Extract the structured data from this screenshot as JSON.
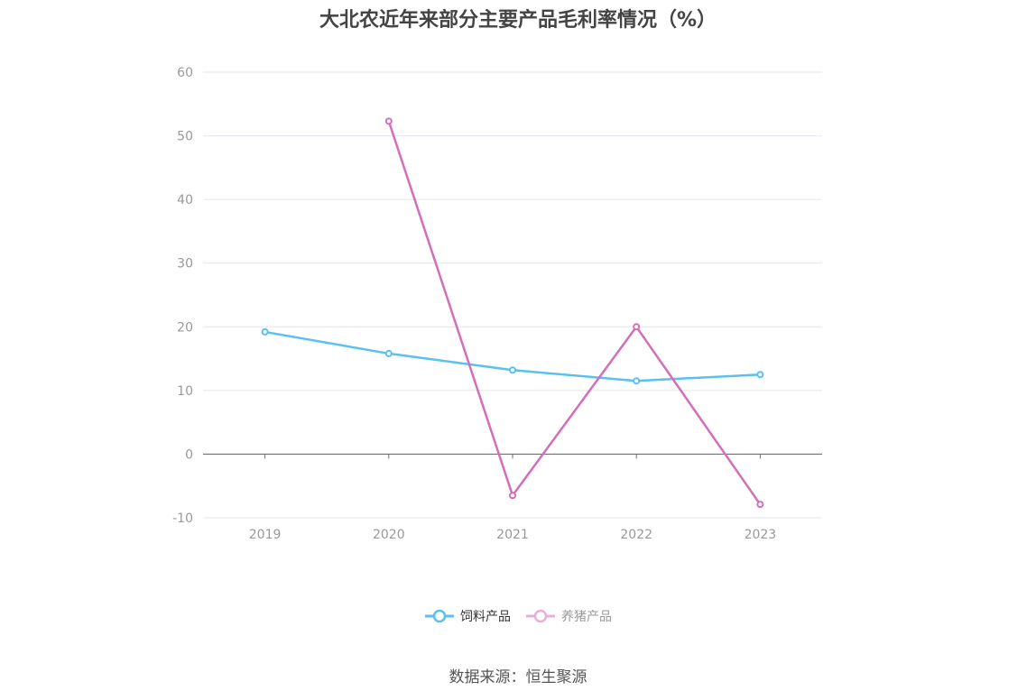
{
  "chart_data": {
    "type": "line",
    "title": "大北农近年来部分主要产品毛利率情况（%）",
    "categories": [
      "2019",
      "2020",
      "2021",
      "2022",
      "2023"
    ],
    "y_ticks": [
      "-10",
      "0",
      "10",
      "20",
      "30",
      "40",
      "50",
      "60"
    ],
    "ylim": [
      -10,
      60
    ],
    "grid": true,
    "legend_position": "bottom",
    "series": [
      {
        "name": "饲料产品",
        "color": "#5bc0f0",
        "values": [
          19.2,
          15.8,
          13.2,
          11.5,
          12.5
        ]
      },
      {
        "name": "养猪产品",
        "color": "#d46eb8",
        "values": [
          null,
          52.3,
          -6.5,
          20.0,
          -7.9
        ]
      }
    ]
  },
  "legend": {
    "items": [
      {
        "label": "饲料产品",
        "color": "#5bc0f0",
        "state": "active"
      },
      {
        "label": "养猪产品",
        "color": "#e8b0d6",
        "state": "inactive"
      }
    ]
  },
  "source": "数据来源：恒生聚源"
}
